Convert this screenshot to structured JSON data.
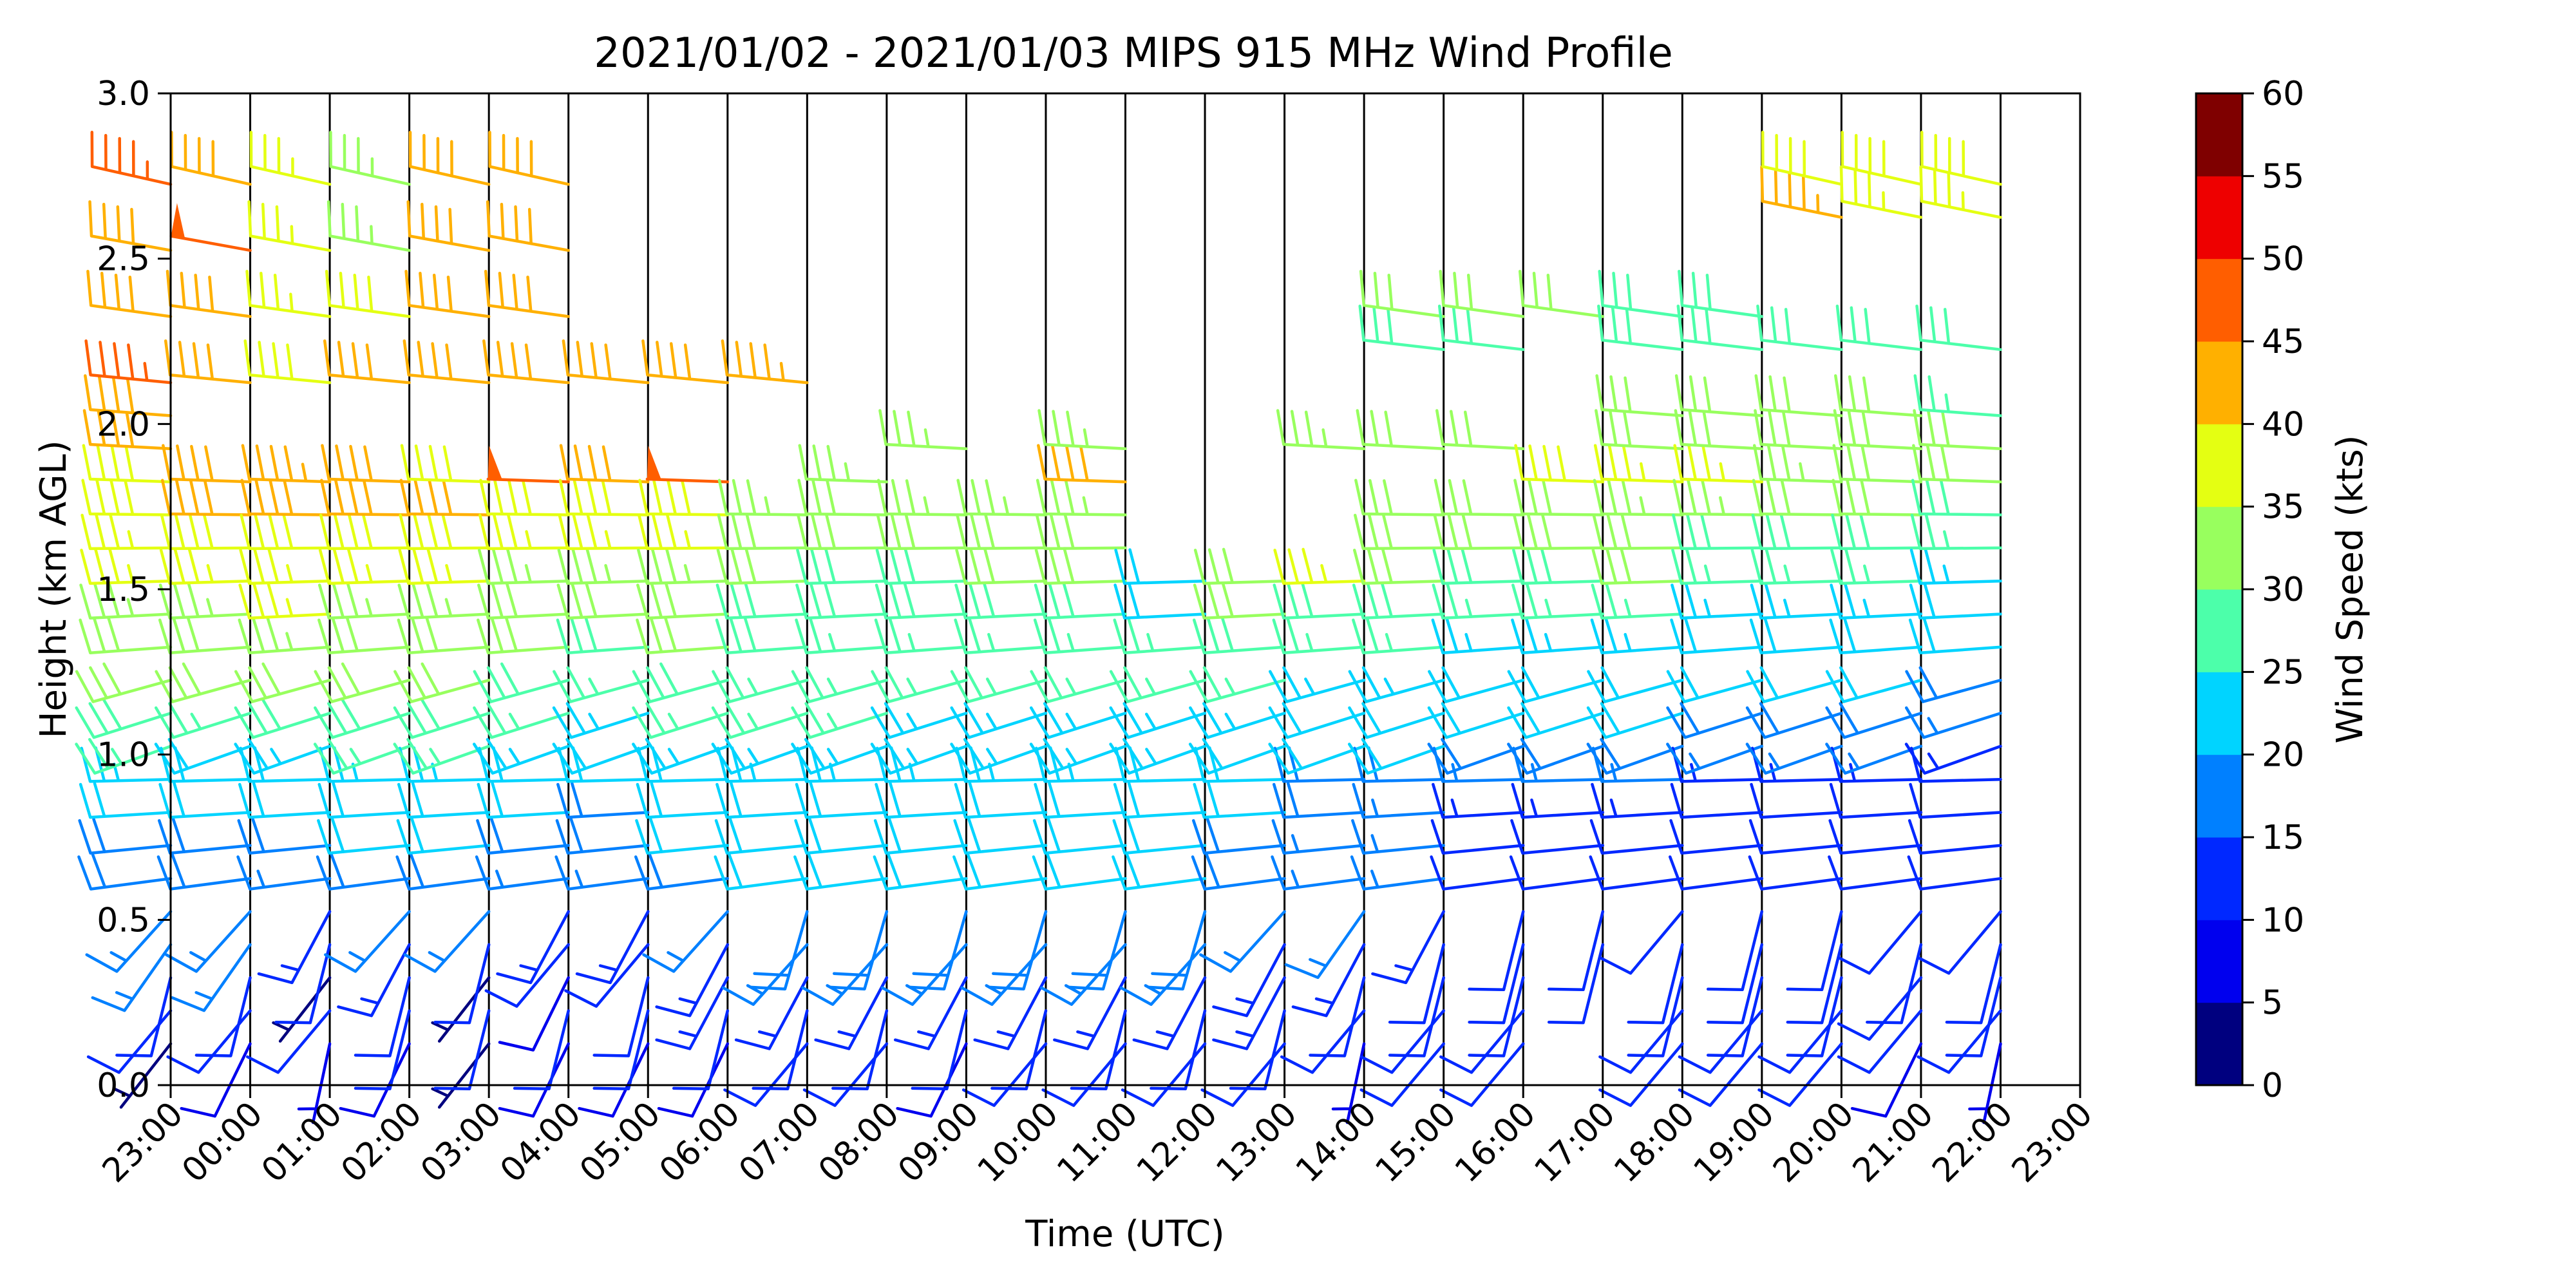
{
  "chart_data": {
    "type": "wind-barb profile",
    "title": "2021/01/02 - 2021/01/03 MIPS 915 MHz Wind Profile",
    "xlabel": "Time (UTC)",
    "ylabel": "Height (km AGL)",
    "x_tick_labels": [
      "23:00",
      "00:00",
      "01:00",
      "02:00",
      "03:00",
      "04:00",
      "05:00",
      "06:00",
      "07:00",
      "08:00",
      "09:00",
      "10:00",
      "11:00",
      "12:00",
      "13:00",
      "14:00",
      "15:00",
      "16:00",
      "17:00",
      "18:00",
      "19:00",
      "20:00",
      "21:00",
      "22:00",
      "23:00"
    ],
    "ylim": [
      0,
      3
    ],
    "y_ticks": [
      0,
      0.5,
      1.0,
      1.5,
      2.0,
      2.5,
      3.0
    ],
    "y_tick_labels": [
      "0.0",
      "0.5",
      "1.0",
      "1.5",
      "2.0",
      "2.5",
      "3.0"
    ],
    "grid": "vertical lines at every hour",
    "colorbar": {
      "label": "Wind Speed (kts)",
      "ticks": [
        0,
        5,
        10,
        15,
        20,
        25,
        30,
        35,
        40,
        45,
        50,
        55,
        60
      ],
      "tick_labels": [
        "0",
        "5",
        "10",
        "15",
        "20",
        "25",
        "30",
        "35",
        "40",
        "45",
        "50",
        "55",
        "60"
      ],
      "colors": [
        "#00007f",
        "#0000ee",
        "#0028ff",
        "#0080ff",
        "#00d4ff",
        "#4cffaa",
        "#98ff5e",
        "#e4ff12",
        "#ffb000",
        "#ff5e00",
        "#ee0000",
        "#7f0000"
      ]
    },
    "profiles": [
      {
        "time": "23:00",
        "speed": [
          4,
          10,
          12,
          15,
          16,
          18,
          19,
          20,
          24,
          26,
          28,
          30,
          32,
          34,
          36,
          36,
          38,
          38,
          40,
          42,
          45,
          null,
          40,
          null,
          42,
          null,
          46
        ]
      },
      {
        "time": "00:00",
        "speed": [
          8,
          10,
          12,
          15,
          16,
          18,
          19,
          20,
          20,
          22,
          26,
          30,
          32,
          34,
          36,
          38,
          40,
          42,
          null,
          null,
          40,
          null,
          42,
          null,
          48,
          null,
          42
        ]
      },
      {
        "time": "01:00",
        "speed": [
          6,
          10,
          4,
          12,
          14,
          16,
          18,
          20,
          22,
          24,
          28,
          30,
          33,
          35,
          37,
          38,
          40,
          44,
          null,
          null,
          38,
          null,
          36,
          null,
          36,
          null,
          36
        ]
      },
      {
        "time": "02:00",
        "speed": [
          8,
          12,
          12,
          14,
          16,
          18,
          20,
          22,
          24,
          26,
          28,
          30,
          32,
          34,
          36,
          38,
          40,
          42,
          null,
          null,
          40,
          null,
          38,
          null,
          34,
          null,
          34
        ]
      },
      {
        "time": "03:00",
        "speed": [
          4,
          12,
          4,
          12,
          16,
          18,
          20,
          22,
          24,
          26,
          28,
          30,
          32,
          34,
          36,
          38,
          40,
          38,
          null,
          null,
          40,
          null,
          40,
          null,
          42,
          null,
          42
        ]
      },
      {
        "time": "04:00",
        "speed": [
          8,
          12,
          8,
          10,
          14,
          16,
          18,
          20,
          22,
          24,
          26,
          28,
          30,
          32,
          34,
          36,
          38,
          48,
          null,
          null,
          40,
          null,
          40,
          null,
          42,
          null,
          42
        ]
      },
      {
        "time": "05:00",
        "speed": [
          8,
          12,
          12,
          10,
          14,
          16,
          18,
          18,
          20,
          22,
          24,
          26,
          28,
          30,
          33,
          36,
          38,
          40,
          null,
          null,
          42,
          null,
          null,
          null,
          null,
          null,
          null
        ]
      },
      {
        "time": "06:00",
        "speed": [
          8,
          12,
          14,
          14,
          16,
          18,
          20,
          21,
          22,
          24,
          26,
          28,
          30,
          31,
          33,
          36,
          38,
          48,
          null,
          null,
          42,
          null,
          null,
          null,
          null,
          null,
          null
        ]
      },
      {
        "time": "07:00",
        "speed": [
          10,
          12,
          14,
          16,
          18,
          20,
          21,
          22,
          23,
          24,
          25,
          26,
          28,
          29,
          30,
          31,
          33,
          null,
          null,
          null,
          44,
          null,
          null,
          null,
          null,
          null,
          null
        ]
      },
      {
        "time": "08:00",
        "speed": [
          10,
          12,
          14,
          16,
          18,
          20,
          21,
          22,
          23,
          24,
          25,
          26,
          27,
          28,
          29,
          31,
          32,
          33,
          null,
          null,
          null,
          null,
          null,
          null,
          null,
          null,
          null
        ]
      },
      {
        "time": "09:00",
        "speed": [
          8,
          12,
          14,
          16,
          18,
          20,
          21,
          22,
          23,
          24,
          24,
          25,
          26,
          28,
          29,
          31,
          33,
          null,
          33,
          null,
          null,
          null,
          null,
          null,
          null,
          null,
          null
        ]
      },
      {
        "time": "10:00",
        "speed": [
          10,
          12,
          14,
          16,
          18,
          20,
          21,
          22,
          23,
          24,
          24,
          25,
          26,
          28,
          30,
          31,
          33,
          null,
          null,
          null,
          null,
          null,
          null,
          null,
          null,
          null,
          null
        ]
      },
      {
        "time": "11:00",
        "speed": [
          10,
          12,
          14,
          16,
          18,
          20,
          21,
          22,
          23,
          24,
          24,
          25,
          26,
          28,
          30,
          31,
          33,
          42,
          33,
          null,
          null,
          null,
          null,
          null,
          null,
          null,
          null
        ]
      },
      {
        "time": "12:00",
        "speed": [
          10,
          12,
          14,
          16,
          18,
          20,
          21,
          22,
          22,
          23,
          24,
          25,
          26,
          20,
          20,
          null,
          null,
          null,
          null,
          null,
          null,
          null,
          null,
          null,
          null,
          null,
          null
        ]
      },
      {
        "time": "13:00",
        "speed": [
          10,
          12,
          14,
          14,
          16,
          18,
          19,
          20,
          20,
          22,
          24,
          26,
          28,
          30,
          32,
          null,
          null,
          null,
          null,
          null,
          null,
          null,
          null,
          null,
          null,
          null,
          null
        ]
      },
      {
        "time": "14:00",
        "speed": [
          6,
          10,
          12,
          14,
          15,
          16,
          17,
          18,
          19,
          20,
          22,
          24,
          26,
          28,
          36,
          null,
          null,
          null,
          33,
          null,
          null,
          null,
          null,
          null,
          null,
          null,
          null
        ]
      },
      {
        "time": "15:00",
        "speed": [
          10,
          10,
          12,
          12,
          14,
          15,
          16,
          16,
          18,
          20,
          22,
          24,
          26,
          28,
          30,
          31,
          32,
          null,
          31,
          null,
          null,
          28,
          30,
          null,
          null,
          null,
          null
        ]
      },
      {
        "time": "16:00",
        "speed": [
          10,
          10,
          12,
          12,
          12,
          10,
          12,
          14,
          16,
          18,
          20,
          22,
          24,
          26,
          28,
          30,
          32,
          null,
          31,
          null,
          null,
          28,
          30,
          null,
          null,
          null,
          null
        ]
      },
      {
        "time": "17:00",
        "speed": [
          null,
          null,
          null,
          12,
          12,
          10,
          12,
          14,
          16,
          18,
          20,
          22,
          24,
          26,
          28,
          30,
          31,
          38,
          null,
          null,
          null,
          null,
          30,
          null,
          null,
          null,
          null
        ]
      },
      {
        "time": "18:00",
        "speed": [
          10,
          10,
          12,
          12,
          10,
          10,
          12,
          14,
          16,
          18,
          20,
          22,
          24,
          26,
          30,
          31,
          33,
          36,
          31,
          31,
          null,
          28,
          28,
          null,
          null,
          null,
          null
        ]
      },
      {
        "time": "19:00",
        "speed": [
          10,
          10,
          12,
          12,
          12,
          10,
          12,
          12,
          14,
          16,
          18,
          20,
          22,
          24,
          26,
          28,
          33,
          36,
          31,
          31,
          null,
          28,
          28,
          null,
          null,
          null,
          null
        ]
      },
      {
        "time": "20:00",
        "speed": [
          10,
          10,
          12,
          12,
          12,
          10,
          10,
          12,
          14,
          16,
          18,
          20,
          22,
          24,
          26,
          28,
          30,
          33,
          31,
          31,
          null,
          28,
          null,
          null,
          null,
          44,
          38
        ]
      },
      {
        "time": "21:00",
        "speed": [
          8,
          10,
          10,
          12,
          10,
          10,
          10,
          12,
          14,
          16,
          18,
          20,
          22,
          24,
          26,
          28,
          30,
          30,
          30,
          31,
          null,
          28,
          null,
          null,
          null,
          36,
          38
        ]
      },
      {
        "time": "22:00",
        "speed": [
          6,
          10,
          12,
          12,
          10,
          10,
          10,
          10,
          12,
          14,
          16,
          18,
          20,
          22,
          24,
          26,
          28,
          30,
          30,
          27,
          null,
          28,
          null,
          null,
          null,
          36,
          38
        ]
      }
    ]
  }
}
